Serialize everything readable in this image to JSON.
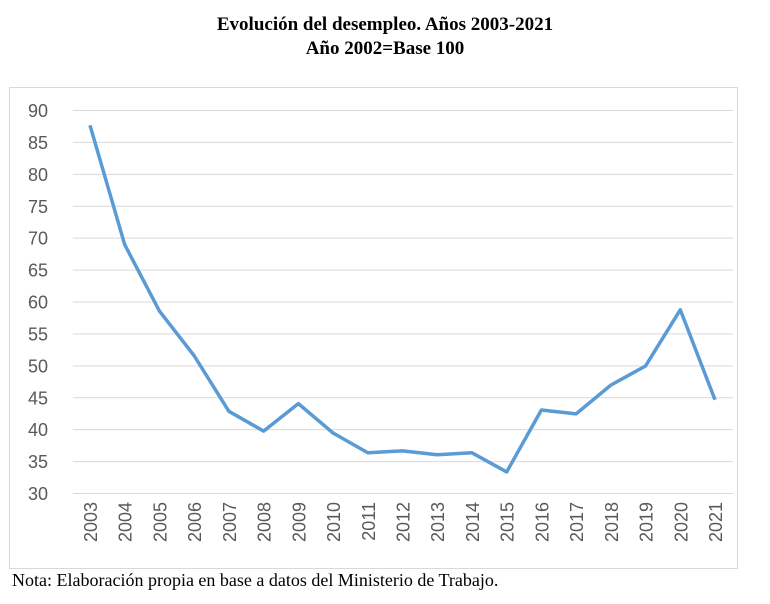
{
  "chart_data": {
    "type": "line",
    "title": "Evolución del desempleo. Años 2003-2021",
    "subtitle": "Año 2002=Base 100",
    "xlabel": "",
    "ylabel": "",
    "categories": [
      "2003",
      "2004",
      "2005",
      "2006",
      "2007",
      "2008",
      "2009",
      "2010",
      "2011",
      "2012",
      "2013",
      "2014",
      "2015",
      "2016",
      "2017",
      "2018",
      "2019",
      "2020",
      "2021"
    ],
    "series": [
      {
        "name": "Desempleo",
        "color": "#5B9BD5",
        "values": [
          87.6,
          68.9,
          58.5,
          51.5,
          42.8,
          39.7,
          44.0,
          39.4,
          36.3,
          36.6,
          36.0,
          36.3,
          33.3,
          43.0,
          42.4,
          46.9,
          49.9,
          58.7,
          44.6
        ]
      }
    ],
    "ylim": [
      30,
      90
    ],
    "yticks": [
      30,
      35,
      40,
      45,
      50,
      55,
      60,
      65,
      70,
      75,
      80,
      85,
      90
    ],
    "grid": true,
    "legend": "none"
  },
  "note": "Nota: Elaboración propia en base a datos del Ministerio de Trabajo."
}
